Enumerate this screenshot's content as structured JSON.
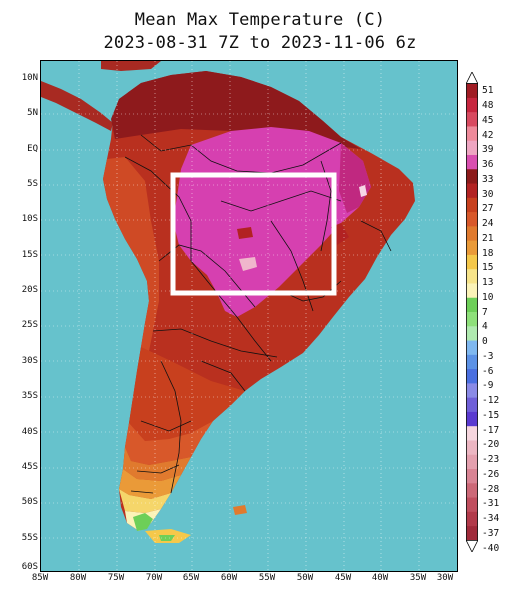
{
  "title_line1": "Mean Max Temperature (C)",
  "title_line2": "2023-08-31 7Z to 2023-11-06 6z",
  "lat_labels": [
    "10N",
    "5N",
    "EQ",
    "5S",
    "10S",
    "15S",
    "20S",
    "25S",
    "30S",
    "35S",
    "40S",
    "45S",
    "50S",
    "55S",
    "60S"
  ],
  "lon_labels": [
    "85W",
    "80W",
    "75W",
    "70W",
    "65W",
    "60W",
    "55W",
    "50W",
    "45W",
    "40W",
    "35W",
    "30W"
  ],
  "colorbar": {
    "ticks": [
      "51",
      "48",
      "45",
      "42",
      "39",
      "36",
      "33",
      "30",
      "27",
      "24",
      "21",
      "18",
      "15",
      "13",
      "10",
      "7",
      "4",
      "0",
      "-3",
      "-6",
      "-9",
      "-12",
      "-15",
      "-17",
      "-20",
      "-23",
      "-26",
      "-28",
      "-31",
      "-34",
      "-37",
      "-40"
    ],
    "colors": [
      "#a01c24",
      "#c7263f",
      "#d84a60",
      "#ee8a9a",
      "#eea6c2",
      "#d94fb0",
      "#8c1a1a",
      "#b22222",
      "#c8401e",
      "#d8582a",
      "#e07a2e",
      "#ea9a38",
      "#f5c84a",
      "#f7e48a",
      "#fbf3b8",
      "#6dcf58",
      "#8ee07a",
      "#b0eab0",
      "#7fb8f0",
      "#5c92e6",
      "#4a6fe0",
      "#8a8ae6",
      "#6f5fd8",
      "#5a3ad0",
      "#f6d6de",
      "#ecb6c2",
      "#e4a0ae",
      "#d98494",
      "#cc6877",
      "#c04e5e",
      "#b23a4a",
      "#a02a3a"
    ]
  },
  "highlight_box": "white rectangle over central Brazil"
}
